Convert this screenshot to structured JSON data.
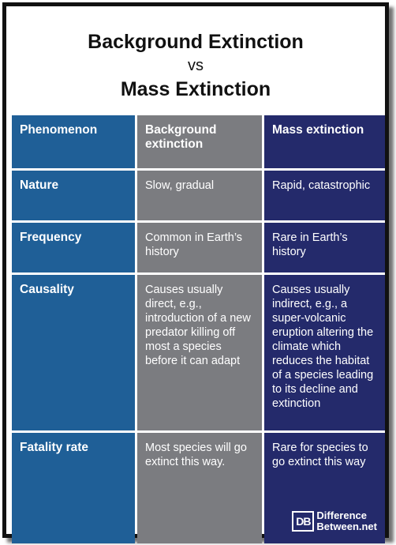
{
  "title": {
    "line1": "Background Extinction",
    "vs": "vs",
    "line2": "Mass Extinction"
  },
  "table": {
    "headers": [
      "Phenomenon",
      "Background extinction",
      "Mass extinction"
    ],
    "rows": [
      {
        "label": "Nature",
        "background": "Slow, gradual",
        "mass": "Rapid, catastrophic"
      },
      {
        "label": "Frequency",
        "background": "Common in Earth’s history",
        "mass": "Rare in Earth’s history"
      },
      {
        "label": "Causality",
        "background": "Causes usually direct, e.g., introduction of a new predator killing off most a species before it can adapt",
        "mass": "Causes usually indirect, e.g., a super-volcanic eruption altering the climate which reduces the habitat of a species leading to its decline and extinction"
      },
      {
        "label": "Fatality rate",
        "background": "Most species will go extinct this way.",
        "mass": "Rare for species to go extinct this way"
      }
    ]
  },
  "logo": {
    "mark": "DB",
    "line1": "Difference",
    "line2": "Between.net"
  },
  "colors": {
    "phenomenon_column": "#1f5f97",
    "background_column": "#7b7c80",
    "mass_column": "#242a6b"
  }
}
